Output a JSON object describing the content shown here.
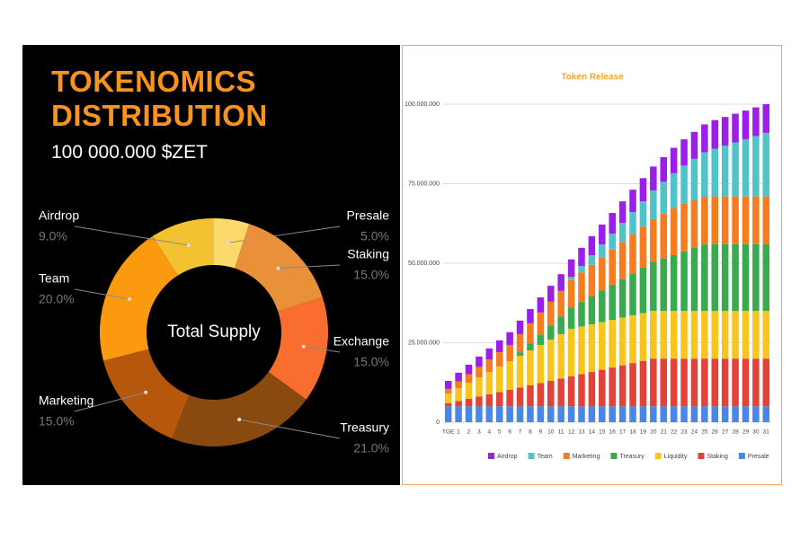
{
  "chart_data": [
    {
      "type": "pie",
      "title": "TOKENOMICS DISTRIBUTION",
      "subtitle": "100 000.000 $ZET",
      "center_label": "Total Supply",
      "categories": [
        "Presale",
        "Staking",
        "Exchange",
        "Treasury",
        "Marketing",
        "Team",
        "Airdrop"
      ],
      "values": [
        5,
        15,
        15,
        21,
        15,
        20,
        9
      ],
      "value_labels": [
        "5.0%",
        "15.0%",
        "15.0%",
        "21.0%",
        "15.0%",
        "20.0%",
        "9.0%"
      ],
      "colors": [
        "#fbd96a",
        "#e8913a",
        "#f96d2f",
        "#8a4a0f",
        "#b5570c",
        "#fb9a0e",
        "#f2c232"
      ]
    },
    {
      "type": "bar",
      "stacked": true,
      "title": "Token Release",
      "categories": [
        "TGE",
        "1",
        "2",
        "3",
        "4",
        "5",
        "6",
        "7",
        "8",
        "9",
        "10",
        "11",
        "12",
        "13",
        "14",
        "15",
        "16",
        "17",
        "18",
        "19",
        "20",
        "21",
        "22",
        "23",
        "24",
        "25",
        "26",
        "27",
        "28",
        "29",
        "30",
        "31"
      ],
      "series": [
        {
          "name": "Airdrop",
          "color": "#9b1fe8",
          "values": [
            2500000,
            2750000,
            3000000,
            3250000,
            3500000,
            3750000,
            4000000,
            4250000,
            4500000,
            4750000,
            5000000,
            5250000,
            5500000,
            5750000,
            6000000,
            6250000,
            6500000,
            6750000,
            7000000,
            7250000,
            7500000,
            7750000,
            8000000,
            8250000,
            8500000,
            8750000,
            9000000,
            9000000,
            9000000,
            9000000,
            9000000,
            9000000
          ]
        },
        {
          "name": "Team",
          "color": "#4fc3c8",
          "values": [
            0,
            0,
            0,
            0,
            0,
            0,
            0,
            0,
            0,
            0,
            0,
            0,
            1000000,
            2000000,
            3000000,
            4000000,
            5000000,
            6000000,
            7000000,
            8000000,
            9000000,
            10000000,
            11000000,
            12000000,
            13000000,
            14000000,
            15000000,
            16000000,
            17000000,
            18000000,
            19000000,
            20000000
          ]
        },
        {
          "name": "Marketing",
          "color": "#f57c1f",
          "values": [
            1500000,
            2100000,
            2700000,
            3300000,
            3900000,
            4500000,
            5100000,
            5700000,
            6300000,
            6900000,
            7500000,
            8100000,
            8700000,
            9300000,
            9900000,
            10500000,
            11100000,
            11700000,
            12300000,
            12900000,
            13500000,
            14100000,
            14700000,
            15000000,
            15000000,
            15000000,
            15000000,
            15000000,
            15000000,
            15000000,
            15000000,
            15000000
          ]
        },
        {
          "name": "Treasury",
          "color": "#3aaa4f",
          "values": [
            0,
            0,
            0,
            0,
            0,
            0,
            0,
            1100000,
            2200000,
            3300000,
            4400000,
            5500000,
            6600000,
            7700000,
            8800000,
            9900000,
            11000000,
            12100000,
            13200000,
            14300000,
            15400000,
            16500000,
            17600000,
            18700000,
            19800000,
            20900000,
            21000000,
            21000000,
            21000000,
            21000000,
            21000000,
            21000000
          ]
        },
        {
          "name": "Liquidity",
          "color": "#f7c51e",
          "values": [
            3000000,
            4000000,
            5000000,
            6000000,
            7000000,
            8000000,
            9000000,
            10000000,
            11000000,
            12000000,
            13000000,
            14000000,
            15000000,
            15000000,
            15000000,
            15000000,
            15000000,
            15000000,
            15000000,
            15000000,
            15000000,
            15000000,
            15000000,
            15000000,
            15000000,
            15000000,
            15000000,
            15000000,
            15000000,
            15000000,
            15000000,
            15000000
          ]
        },
        {
          "name": "Staking",
          "color": "#e2423a",
          "values": [
            1000000,
            1700000,
            2400000,
            3100000,
            3800000,
            4500000,
            5200000,
            5900000,
            6600000,
            7300000,
            8000000,
            8700000,
            9400000,
            10100000,
            10800000,
            11500000,
            12200000,
            12900000,
            13600000,
            14300000,
            15000000,
            15000000,
            15000000,
            15000000,
            15000000,
            15000000,
            15000000,
            15000000,
            15000000,
            15000000,
            15000000,
            15000000
          ]
        },
        {
          "name": "Presale",
          "color": "#4a86e8",
          "values": [
            5000000,
            5000000,
            5000000,
            5000000,
            5000000,
            5000000,
            5000000,
            5000000,
            5000000,
            5000000,
            5000000,
            5000000,
            5000000,
            5000000,
            5000000,
            5000000,
            5000000,
            5000000,
            5000000,
            5000000,
            5000000,
            5000000,
            5000000,
            5000000,
            5000000,
            5000000,
            5000000,
            5000000,
            5000000,
            5000000,
            5000000,
            5000000
          ]
        }
      ],
      "ylim": [
        0,
        100000000
      ],
      "yticks": [
        0,
        {
          "value": 25000000,
          "label": "25.000.000"
        },
        {
          "value": 50000000,
          "label": "50.000.000"
        },
        {
          "value": 75000000,
          "label": "75.000.000"
        },
        {
          "value": 100000000,
          "label": "100.000.000"
        }
      ],
      "grid": true,
      "legend": "bottom"
    }
  ]
}
